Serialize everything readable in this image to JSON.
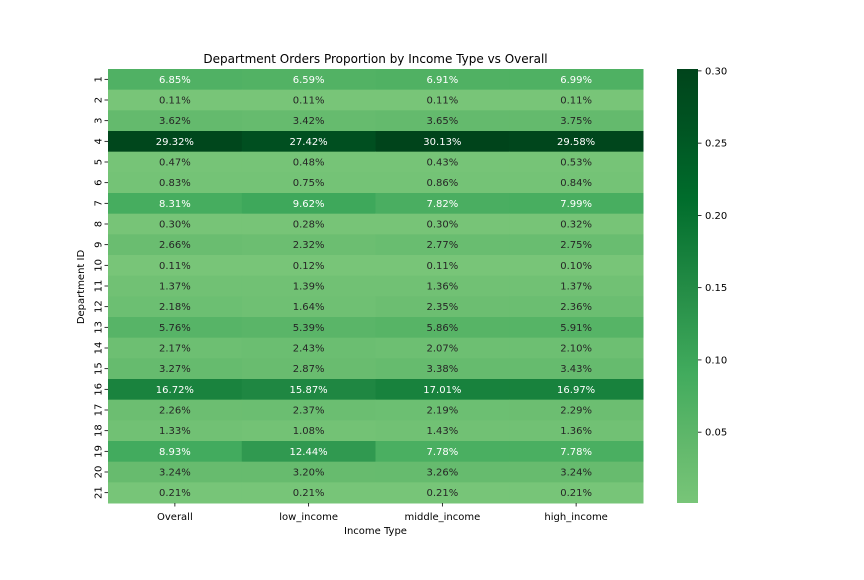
{
  "chart_data": {
    "type": "heatmap",
    "title": "Department Orders Proportion by Income Type vs Overall",
    "xlabel": "Income Type",
    "ylabel": "Department ID",
    "x": [
      "Overall",
      "low_income",
      "middle_income",
      "high_income"
    ],
    "y": [
      "1",
      "2",
      "3",
      "4",
      "5",
      "6",
      "7",
      "8",
      "9",
      "10",
      "11",
      "12",
      "13",
      "14",
      "15",
      "16",
      "17",
      "18",
      "19",
      "20",
      "21"
    ],
    "values": [
      [
        0.0685,
        0.0659,
        0.0691,
        0.0699
      ],
      [
        0.0011,
        0.0011,
        0.0011,
        0.0011
      ],
      [
        0.0362,
        0.0342,
        0.0365,
        0.0375
      ],
      [
        0.2932,
        0.2742,
        0.3013,
        0.2958
      ],
      [
        0.0047,
        0.0048,
        0.0043,
        0.0053
      ],
      [
        0.0083,
        0.0075,
        0.0086,
        0.0084
      ],
      [
        0.0831,
        0.0962,
        0.0782,
        0.0799
      ],
      [
        0.003,
        0.0028,
        0.003,
        0.0032
      ],
      [
        0.0266,
        0.0232,
        0.0277,
        0.0275
      ],
      [
        0.0011,
        0.0012,
        0.0011,
        0.001
      ],
      [
        0.0137,
        0.0139,
        0.0136,
        0.0137
      ],
      [
        0.0218,
        0.0164,
        0.0235,
        0.0236
      ],
      [
        0.0576,
        0.0539,
        0.0586,
        0.0591
      ],
      [
        0.0217,
        0.0243,
        0.0207,
        0.021
      ],
      [
        0.0327,
        0.0287,
        0.0338,
        0.0343
      ],
      [
        0.1672,
        0.1587,
        0.1701,
        0.1697
      ],
      [
        0.0226,
        0.0237,
        0.0219,
        0.0229
      ],
      [
        0.0133,
        0.0108,
        0.0143,
        0.0136
      ],
      [
        0.0893,
        0.1244,
        0.0778,
        0.0778
      ],
      [
        0.0324,
        0.032,
        0.0326,
        0.0324
      ],
      [
        0.0021,
        0.0021,
        0.0021,
        0.0021
      ]
    ],
    "annotations": [
      [
        "6.85%",
        "6.59%",
        "6.91%",
        "6.99%"
      ],
      [
        "0.11%",
        "0.11%",
        "0.11%",
        "0.11%"
      ],
      [
        "3.62%",
        "3.42%",
        "3.65%",
        "3.75%"
      ],
      [
        "29.32%",
        "27.42%",
        "30.13%",
        "29.58%"
      ],
      [
        "0.47%",
        "0.48%",
        "0.43%",
        "0.53%"
      ],
      [
        "0.83%",
        "0.75%",
        "0.86%",
        "0.84%"
      ],
      [
        "8.31%",
        "9.62%",
        "7.82%",
        "7.99%"
      ],
      [
        "0.30%",
        "0.28%",
        "0.30%",
        "0.32%"
      ],
      [
        "2.66%",
        "2.32%",
        "2.77%",
        "2.75%"
      ],
      [
        "0.11%",
        "0.12%",
        "0.11%",
        "0.10%"
      ],
      [
        "1.37%",
        "1.39%",
        "1.36%",
        "1.37%"
      ],
      [
        "2.18%",
        "1.64%",
        "2.35%",
        "2.36%"
      ],
      [
        "5.76%",
        "5.39%",
        "5.86%",
        "5.91%"
      ],
      [
        "2.17%",
        "2.43%",
        "2.07%",
        "2.10%"
      ],
      [
        "3.27%",
        "2.87%",
        "3.38%",
        "3.43%"
      ],
      [
        "16.72%",
        "15.87%",
        "17.01%",
        "16.97%"
      ],
      [
        "2.26%",
        "2.37%",
        "2.19%",
        "2.29%"
      ],
      [
        "1.33%",
        "1.08%",
        "1.43%",
        "1.36%"
      ],
      [
        "8.93%",
        "12.44%",
        "7.78%",
        "7.78%"
      ],
      [
        "3.24%",
        "3.20%",
        "3.26%",
        "3.24%"
      ],
      [
        "0.21%",
        "0.21%",
        "0.21%",
        "0.21%"
      ]
    ],
    "colorbar": {
      "cmap": "Greens",
      "vmin": 0.001,
      "vmax": 0.3013,
      "ticks": [
        "0.05",
        "0.10",
        "0.15",
        "0.20",
        "0.25",
        "0.30"
      ]
    }
  }
}
